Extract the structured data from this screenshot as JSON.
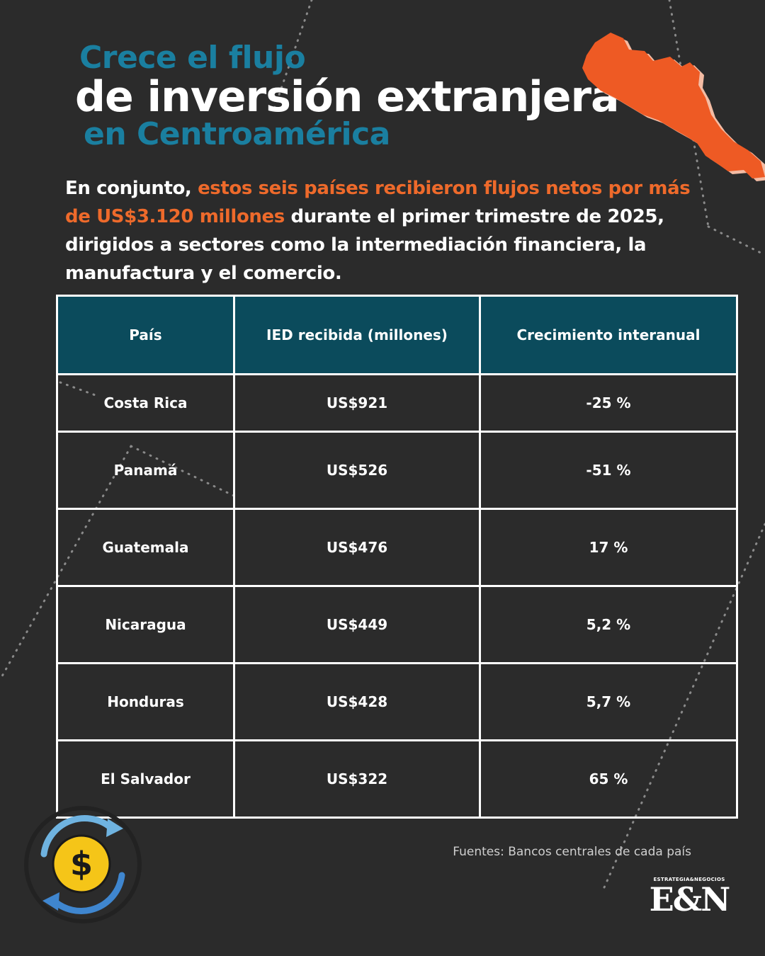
{
  "colors": {
    "background": "#2b2b2b",
    "title_accent": "#1a7fa0",
    "highlight": "#ee6a2b",
    "table_header": "#0b4b5c",
    "text": "#ffffff"
  },
  "title": {
    "line1": "Crece el flujo",
    "line2": "de inversión extranjera",
    "line3": "en Centroamérica"
  },
  "intro": {
    "part1": "En conjunto, ",
    "highlight": "estos seis países recibieron flujos netos por más de US$3.120 millones",
    "part2": " durante el primer trimestre de 2025, dirigidos a sectores como la intermediación financiera, la manufactura y el comercio."
  },
  "table": {
    "headers": [
      "País",
      "IED recibida (millones)",
      "Crecimiento interanual"
    ],
    "rows": [
      [
        "Costa Rica",
        "US$921",
        "-25 %"
      ],
      [
        "Panamá",
        "US$526",
        "-51 %"
      ],
      [
        "Guatemala",
        "US$476",
        "17 %"
      ],
      [
        "Nicaragua",
        "US$449",
        "5,2 %"
      ],
      [
        "Honduras",
        "US$428",
        "5,7 %"
      ],
      [
        "El Salvador",
        "US$322",
        "65 %"
      ]
    ]
  },
  "source": "Fuentes: Bancos centrales de cada país",
  "logo": {
    "tagline": "ESTRATEGIA&NEGOCIOS",
    "mark": "E&N"
  },
  "icons": {
    "map": "central-america-map-icon",
    "currency": "dollar-exchange-icon"
  }
}
